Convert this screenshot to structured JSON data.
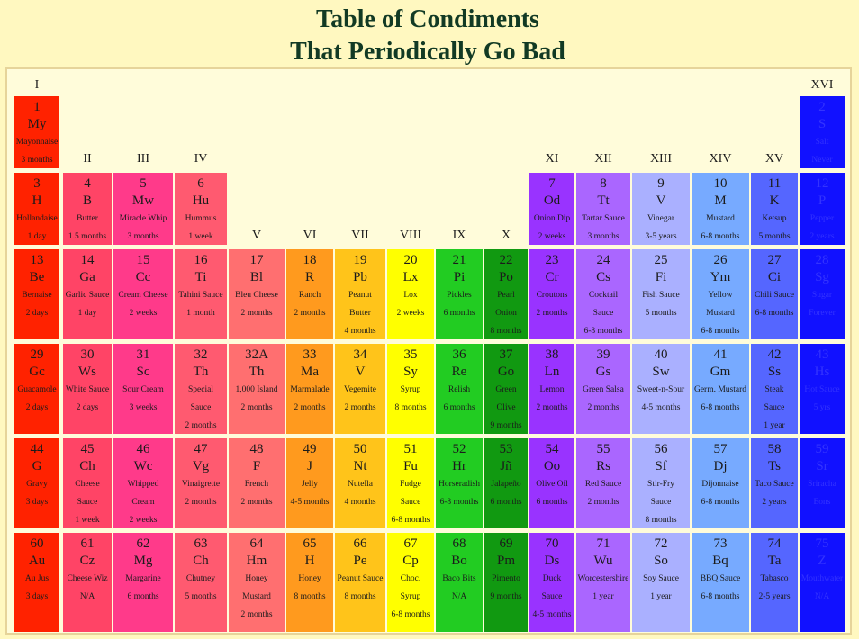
{
  "title": [
    "Table of Condiments",
    "That Periodically Go Bad"
  ],
  "colors": {
    "background": "#fff8c0",
    "frame": "#fffcda",
    "columns": [
      "#ff2200",
      "#ff4466",
      "#ff3a8a",
      "#ff5a70",
      "#ff6f70",
      "#ff9a1e",
      "#ffc41a",
      "#ffff00",
      "#22cc22",
      "#119911",
      "#9933ff",
      "#aa66ff",
      "#aab0ff",
      "#77aaff",
      "#5566ff",
      "#1111ff"
    ]
  },
  "groups": [
    {
      "label": "I",
      "col": 0,
      "row": 0
    },
    {
      "label": "II",
      "col": 1,
      "row": 1
    },
    {
      "label": "III",
      "col": 2,
      "row": 1
    },
    {
      "label": "IV",
      "col": 3,
      "row": 1
    },
    {
      "label": "V",
      "col": 4,
      "row": 2
    },
    {
      "label": "VI",
      "col": 5,
      "row": 2
    },
    {
      "label": "VII",
      "col": 6,
      "row": 2
    },
    {
      "label": "VIII",
      "col": 7,
      "row": 2
    },
    {
      "label": "IX",
      "col": 8,
      "row": 2
    },
    {
      "label": "X",
      "col": 9,
      "row": 2
    },
    {
      "label": "XI",
      "col": 10,
      "row": 1
    },
    {
      "label": "XII",
      "col": 11,
      "row": 1
    },
    {
      "label": "XIII",
      "col": 12,
      "row": 1
    },
    {
      "label": "XIV",
      "col": 13,
      "row": 1
    },
    {
      "label": "XV",
      "col": 14,
      "row": 1
    },
    {
      "label": "XVI",
      "col": 15,
      "row": 0
    }
  ],
  "elements": [
    {
      "col": 0,
      "row": 1,
      "num": "1",
      "sym": "My",
      "lines": [
        "Mayonnaise",
        "3 months"
      ]
    },
    {
      "col": 15,
      "row": 1,
      "num": "2",
      "sym": "S",
      "lines": [
        "Salt",
        "Never"
      ]
    },
    {
      "col": 0,
      "row": 2,
      "num": "3",
      "sym": "H",
      "lines": [
        "Hollandaise",
        "1 day"
      ]
    },
    {
      "col": 1,
      "row": 2,
      "num": "4",
      "sym": "B",
      "lines": [
        "Butter",
        "1.5 months"
      ]
    },
    {
      "col": 2,
      "row": 2,
      "num": "5",
      "sym": "Mw",
      "lines": [
        "Miracle Whip",
        "3 months"
      ]
    },
    {
      "col": 3,
      "row": 2,
      "num": "6",
      "sym": "Hu",
      "lines": [
        "Hummus",
        "1 week"
      ]
    },
    {
      "col": 10,
      "row": 2,
      "num": "7",
      "sym": "Od",
      "lines": [
        "Onion Dip",
        "2 weeks"
      ]
    },
    {
      "col": 11,
      "row": 2,
      "num": "8",
      "sym": "Tt",
      "lines": [
        "Tartar Sauce",
        "3 months"
      ]
    },
    {
      "col": 12,
      "row": 2,
      "num": "9",
      "sym": "V",
      "lines": [
        "Vinegar",
        "3-5 years"
      ]
    },
    {
      "col": 13,
      "row": 2,
      "num": "10",
      "sym": "M",
      "lines": [
        "Mustard",
        "6-8 months"
      ]
    },
    {
      "col": 14,
      "row": 2,
      "num": "11",
      "sym": "K",
      "lines": [
        "Ketsup",
        "5 months"
      ]
    },
    {
      "col": 15,
      "row": 2,
      "num": "12",
      "sym": "P",
      "lines": [
        "Pepper",
        "2 years"
      ]
    },
    {
      "col": 0,
      "row": 3,
      "num": "13",
      "sym": "Be",
      "lines": [
        "Bernaise",
        "2 days"
      ]
    },
    {
      "col": 1,
      "row": 3,
      "num": "14",
      "sym": "Ga",
      "lines": [
        "Garlic Sauce",
        "1 day"
      ]
    },
    {
      "col": 2,
      "row": 3,
      "num": "15",
      "sym": "Cc",
      "lines": [
        "Cream Cheese",
        "2 weeks"
      ]
    },
    {
      "col": 3,
      "row": 3,
      "num": "16",
      "sym": "Ti",
      "lines": [
        "Tahini Sauce",
        "1 month"
      ]
    },
    {
      "col": 4,
      "row": 3,
      "num": "17",
      "sym": "Bl",
      "lines": [
        "Bleu Cheese",
        "2 months"
      ]
    },
    {
      "col": 5,
      "row": 3,
      "num": "18",
      "sym": "R",
      "lines": [
        "Ranch",
        "2 months"
      ]
    },
    {
      "col": 6,
      "row": 3,
      "num": "19",
      "sym": "Pb",
      "lines": [
        "Peanut",
        "Butter",
        "4 months"
      ]
    },
    {
      "col": 7,
      "row": 3,
      "num": "20",
      "sym": "Lx",
      "lines": [
        "Lox",
        "2 weeks"
      ]
    },
    {
      "col": 8,
      "row": 3,
      "num": "21",
      "sym": "Pi",
      "lines": [
        "Pickles",
        "6 months"
      ]
    },
    {
      "col": 9,
      "row": 3,
      "num": "22",
      "sym": "Po",
      "lines": [
        "Pearl",
        "Onion",
        "8 months"
      ]
    },
    {
      "col": 10,
      "row": 3,
      "num": "23",
      "sym": "Cr",
      "lines": [
        "Croutons",
        "2 months"
      ]
    },
    {
      "col": 11,
      "row": 3,
      "num": "24",
      "sym": "Cs",
      "lines": [
        "Cocktail",
        "Sauce",
        "6-8 months"
      ]
    },
    {
      "col": 12,
      "row": 3,
      "num": "25",
      "sym": "Fi",
      "lines": [
        "Fish Sauce",
        "5 months"
      ]
    },
    {
      "col": 13,
      "row": 3,
      "num": "26",
      "sym": "Ym",
      "lines": [
        "Yellow",
        "Mustard",
        "6-8 months"
      ]
    },
    {
      "col": 14,
      "row": 3,
      "num": "27",
      "sym": "Ci",
      "lines": [
        "Chili Sauce",
        "6-8 months"
      ]
    },
    {
      "col": 15,
      "row": 3,
      "num": "28",
      "sym": "Sg",
      "lines": [
        "Sugar",
        "Forever"
      ]
    },
    {
      "col": 0,
      "row": 4,
      "num": "29",
      "sym": "Gc",
      "lines": [
        "Guacamole",
        "2 days"
      ]
    },
    {
      "col": 1,
      "row": 4,
      "num": "30",
      "sym": "Ws",
      "lines": [
        "White Sauce",
        "2 days"
      ]
    },
    {
      "col": 2,
      "row": 4,
      "num": "31",
      "sym": "Sc",
      "lines": [
        "Sour Cream",
        "3 weeks"
      ]
    },
    {
      "col": 3,
      "row": 4,
      "num": "32",
      "sym": "Th",
      "lines": [
        "Special",
        "Sauce",
        "2 months"
      ]
    },
    {
      "col": 4,
      "row": 4,
      "num": "32A",
      "sym": "Th",
      "lines": [
        "1,000 Island",
        "2 months"
      ]
    },
    {
      "col": 5,
      "row": 4,
      "num": "33",
      "sym": "Ma",
      "lines": [
        "Marmalade",
        "2 months"
      ]
    },
    {
      "col": 6,
      "row": 4,
      "num": "34",
      "sym": "V",
      "lines": [
        "Vegemite",
        "2 months"
      ]
    },
    {
      "col": 7,
      "row": 4,
      "num": "35",
      "sym": "Sy",
      "lines": [
        "Syrup",
        "8 months"
      ]
    },
    {
      "col": 8,
      "row": 4,
      "num": "36",
      "sym": "Re",
      "lines": [
        "Relish",
        "6 months"
      ]
    },
    {
      "col": 9,
      "row": 4,
      "num": "37",
      "sym": "Go",
      "lines": [
        "Green",
        "Olive",
        "9 months"
      ]
    },
    {
      "col": 10,
      "row": 4,
      "num": "38",
      "sym": "Ln",
      "lines": [
        "Lemon",
        "2 months"
      ]
    },
    {
      "col": 11,
      "row": 4,
      "num": "39",
      "sym": "Gs",
      "lines": [
        "Green Salsa",
        "2 months"
      ]
    },
    {
      "col": 12,
      "row": 4,
      "num": "40",
      "sym": "Sw",
      "lines": [
        "Sweet-n-Sour",
        "4-5 months"
      ]
    },
    {
      "col": 13,
      "row": 4,
      "num": "41",
      "sym": "Gm",
      "lines": [
        "Germ. Mustard",
        "6-8 months"
      ]
    },
    {
      "col": 14,
      "row": 4,
      "num": "42",
      "sym": "Ss",
      "lines": [
        "Steak",
        "Sauce",
        "1 year"
      ]
    },
    {
      "col": 15,
      "row": 4,
      "num": "43",
      "sym": "Hs",
      "lines": [
        "Hot Sauce",
        "5 yrs"
      ]
    },
    {
      "col": 0,
      "row": 5,
      "num": "44",
      "sym": "G",
      "lines": [
        "Gravy",
        "3 days"
      ]
    },
    {
      "col": 1,
      "row": 5,
      "num": "45",
      "sym": "Ch",
      "lines": [
        "Cheese",
        "Sauce",
        "1 week"
      ]
    },
    {
      "col": 2,
      "row": 5,
      "num": "46",
      "sym": "Wc",
      "lines": [
        "Whipped",
        "Cream",
        "2 weeks"
      ]
    },
    {
      "col": 3,
      "row": 5,
      "num": "47",
      "sym": "Vg",
      "lines": [
        "Vinaigrette",
        "2 months"
      ]
    },
    {
      "col": 4,
      "row": 5,
      "num": "48",
      "sym": "F",
      "lines": [
        "French",
        "2 months"
      ]
    },
    {
      "col": 5,
      "row": 5,
      "num": "49",
      "sym": "J",
      "lines": [
        "Jelly",
        "4-5 months"
      ]
    },
    {
      "col": 6,
      "row": 5,
      "num": "50",
      "sym": "Nt",
      "lines": [
        "Nutella",
        "4 months"
      ]
    },
    {
      "col": 7,
      "row": 5,
      "num": "51",
      "sym": "Fu",
      "lines": [
        "Fudge",
        "Sauce",
        "6-8 months"
      ]
    },
    {
      "col": 8,
      "row": 5,
      "num": "52",
      "sym": "Hr",
      "lines": [
        "Horseradish",
        "6-8 months"
      ]
    },
    {
      "col": 9,
      "row": 5,
      "num": "53",
      "sym": "Jñ",
      "lines": [
        "Jalapeño",
        "6 months"
      ]
    },
    {
      "col": 10,
      "row": 5,
      "num": "54",
      "sym": "Oo",
      "lines": [
        "Olive Oil",
        "6 months"
      ]
    },
    {
      "col": 11,
      "row": 5,
      "num": "55",
      "sym": "Rs",
      "lines": [
        "Red Sauce",
        "2 months"
      ]
    },
    {
      "col": 12,
      "row": 5,
      "num": "56",
      "sym": "Sf",
      "lines": [
        "Stir-Fry",
        "Sauce",
        "8 months"
      ]
    },
    {
      "col": 13,
      "row": 5,
      "num": "57",
      "sym": "Dj",
      "lines": [
        "Dijonnaise",
        "6-8 months"
      ]
    },
    {
      "col": 14,
      "row": 5,
      "num": "58",
      "sym": "Ts",
      "lines": [
        "Taco Sauce",
        "2 years"
      ]
    },
    {
      "col": 15,
      "row": 5,
      "num": "59",
      "sym": "Sr",
      "lines": [
        "Sriracha",
        "Eons"
      ]
    },
    {
      "col": 0,
      "row": 6,
      "num": "60",
      "sym": "Au",
      "lines": [
        "Au Jus",
        "3 days"
      ]
    },
    {
      "col": 1,
      "row": 6,
      "num": "61",
      "sym": "Cz",
      "lines": [
        "Cheese Wiz",
        "N/A"
      ]
    },
    {
      "col": 2,
      "row": 6,
      "num": "62",
      "sym": "Mg",
      "lines": [
        "Margarine",
        "6 months"
      ]
    },
    {
      "col": 3,
      "row": 6,
      "num": "63",
      "sym": "Ch",
      "lines": [
        "Chutney",
        "5 months"
      ]
    },
    {
      "col": 4,
      "row": 6,
      "num": "64",
      "sym": "Hm",
      "lines": [
        "Honey",
        "Mustard",
        "2 months"
      ]
    },
    {
      "col": 5,
      "row": 6,
      "num": "65",
      "sym": "H",
      "lines": [
        "Honey",
        "8 months"
      ]
    },
    {
      "col": 6,
      "row": 6,
      "num": "66",
      "sym": "Pe",
      "lines": [
        "Peanut Sauce",
        "8 months"
      ]
    },
    {
      "col": 7,
      "row": 6,
      "num": "67",
      "sym": "Cp",
      "lines": [
        "Choc.",
        "Syrup",
        "6-8 months"
      ]
    },
    {
      "col": 8,
      "row": 6,
      "num": "68",
      "sym": "Bo",
      "lines": [
        "Baco Bits",
        "N/A"
      ]
    },
    {
      "col": 9,
      "row": 6,
      "num": "69",
      "sym": "Pm",
      "lines": [
        "Pimento",
        "9 months"
      ]
    },
    {
      "col": 10,
      "row": 6,
      "num": "70",
      "sym": "Ds",
      "lines": [
        "Duck",
        "Sauce",
        "4-5 months"
      ]
    },
    {
      "col": 11,
      "row": 6,
      "num": "71",
      "sym": "Wu",
      "lines": [
        "Worcestershire",
        "1 year"
      ]
    },
    {
      "col": 12,
      "row": 6,
      "num": "72",
      "sym": "So",
      "lines": [
        "Soy Sauce",
        "1 year"
      ]
    },
    {
      "col": 13,
      "row": 6,
      "num": "73",
      "sym": "Bq",
      "lines": [
        "BBQ Sauce",
        "6-8 months"
      ]
    },
    {
      "col": 14,
      "row": 6,
      "num": "74",
      "sym": "Ta",
      "lines": [
        "Tabasco",
        "2-5 years"
      ]
    },
    {
      "col": 15,
      "row": 6,
      "num": "75",
      "sym": "Z",
      "lines": [
        "Mouthwater",
        "N/A"
      ]
    }
  ]
}
